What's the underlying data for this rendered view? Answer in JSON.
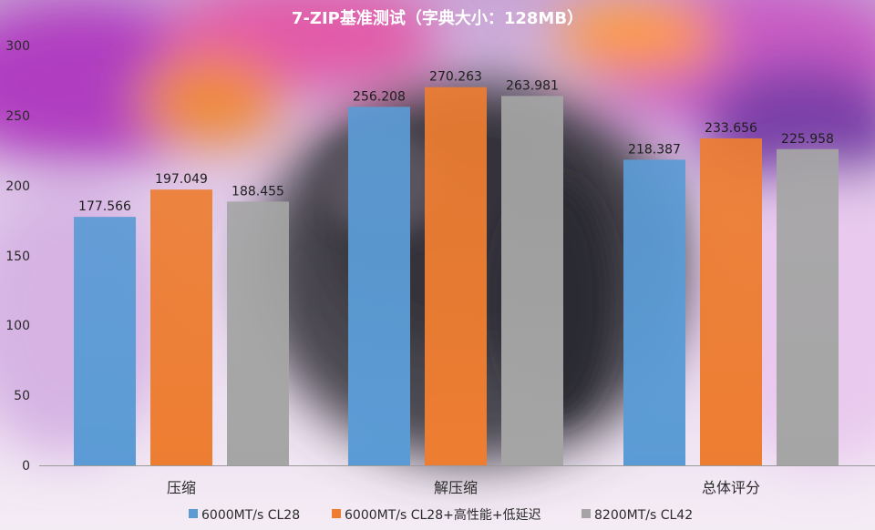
{
  "colors": {
    "series_blue": "#5b9bd5",
    "series_orange": "#ed7d31",
    "series_gray": "#a5a5a5"
  },
  "chart_data": {
    "type": "bar",
    "title": "7-ZIP基准测试（字典大小：128MB）",
    "categories": [
      "压缩",
      "解压缩",
      "总体评分"
    ],
    "series": [
      {
        "name": "6000MT/s CL28",
        "color": "#5b9bd5",
        "values": [
          177.566,
          256.208,
          218.387
        ]
      },
      {
        "name": "6000MT/s CL28+高性能+低延迟",
        "color": "#ed7d31",
        "values": [
          197.049,
          270.263,
          233.656
        ]
      },
      {
        "name": "8200MT/s CL42",
        "color": "#a5a5a5",
        "values": [
          188.455,
          263.981,
          225.958
        ]
      }
    ],
    "data_labels": [
      [
        "177.566",
        "256.208",
        "218.387"
      ],
      [
        "197.049",
        "270.263",
        "233.656"
      ],
      [
        "188.455",
        "263.981",
        "225.958"
      ]
    ],
    "ylim": [
      0,
      300
    ],
    "yticks": [
      "0",
      "50",
      "100",
      "150",
      "200",
      "250",
      "300"
    ],
    "xlabel": "",
    "ylabel": "",
    "grid": false,
    "legend": "bottom"
  }
}
